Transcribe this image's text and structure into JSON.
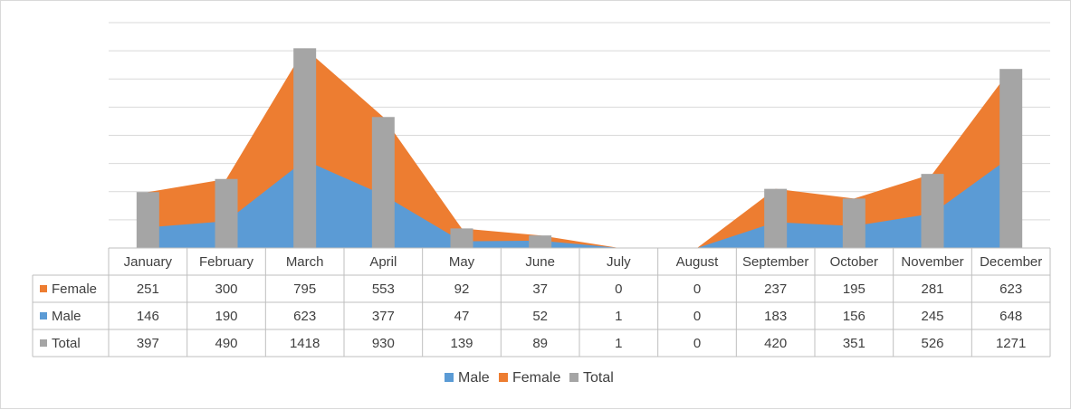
{
  "chart_data": {
    "type": "area",
    "categories": [
      "January",
      "February",
      "March",
      "April",
      "May",
      "June",
      "July",
      "August",
      "September",
      "October",
      "November",
      "December"
    ],
    "series": [
      {
        "name": "Female",
        "chart_type": "stacked-area",
        "color": "#ed7d31",
        "values": [
          251,
          300,
          795,
          553,
          92,
          37,
          0,
          0,
          237,
          195,
          281,
          623
        ]
      },
      {
        "name": "Male",
        "chart_type": "stacked-area",
        "color": "#5b9bd5",
        "values": [
          146,
          190,
          623,
          377,
          47,
          52,
          1,
          0,
          183,
          156,
          245,
          648
        ]
      },
      {
        "name": "Total",
        "chart_type": "bar",
        "color": "#a5a5a5",
        "values": [
          397,
          490,
          1418,
          930,
          139,
          89,
          1,
          0,
          420,
          351,
          526,
          1271
        ]
      }
    ],
    "ylim": [
      0,
      1600
    ],
    "grid": true,
    "data_table": true,
    "legend_position": "bottom",
    "legend": [
      "Male",
      "Female",
      "Total"
    ]
  }
}
